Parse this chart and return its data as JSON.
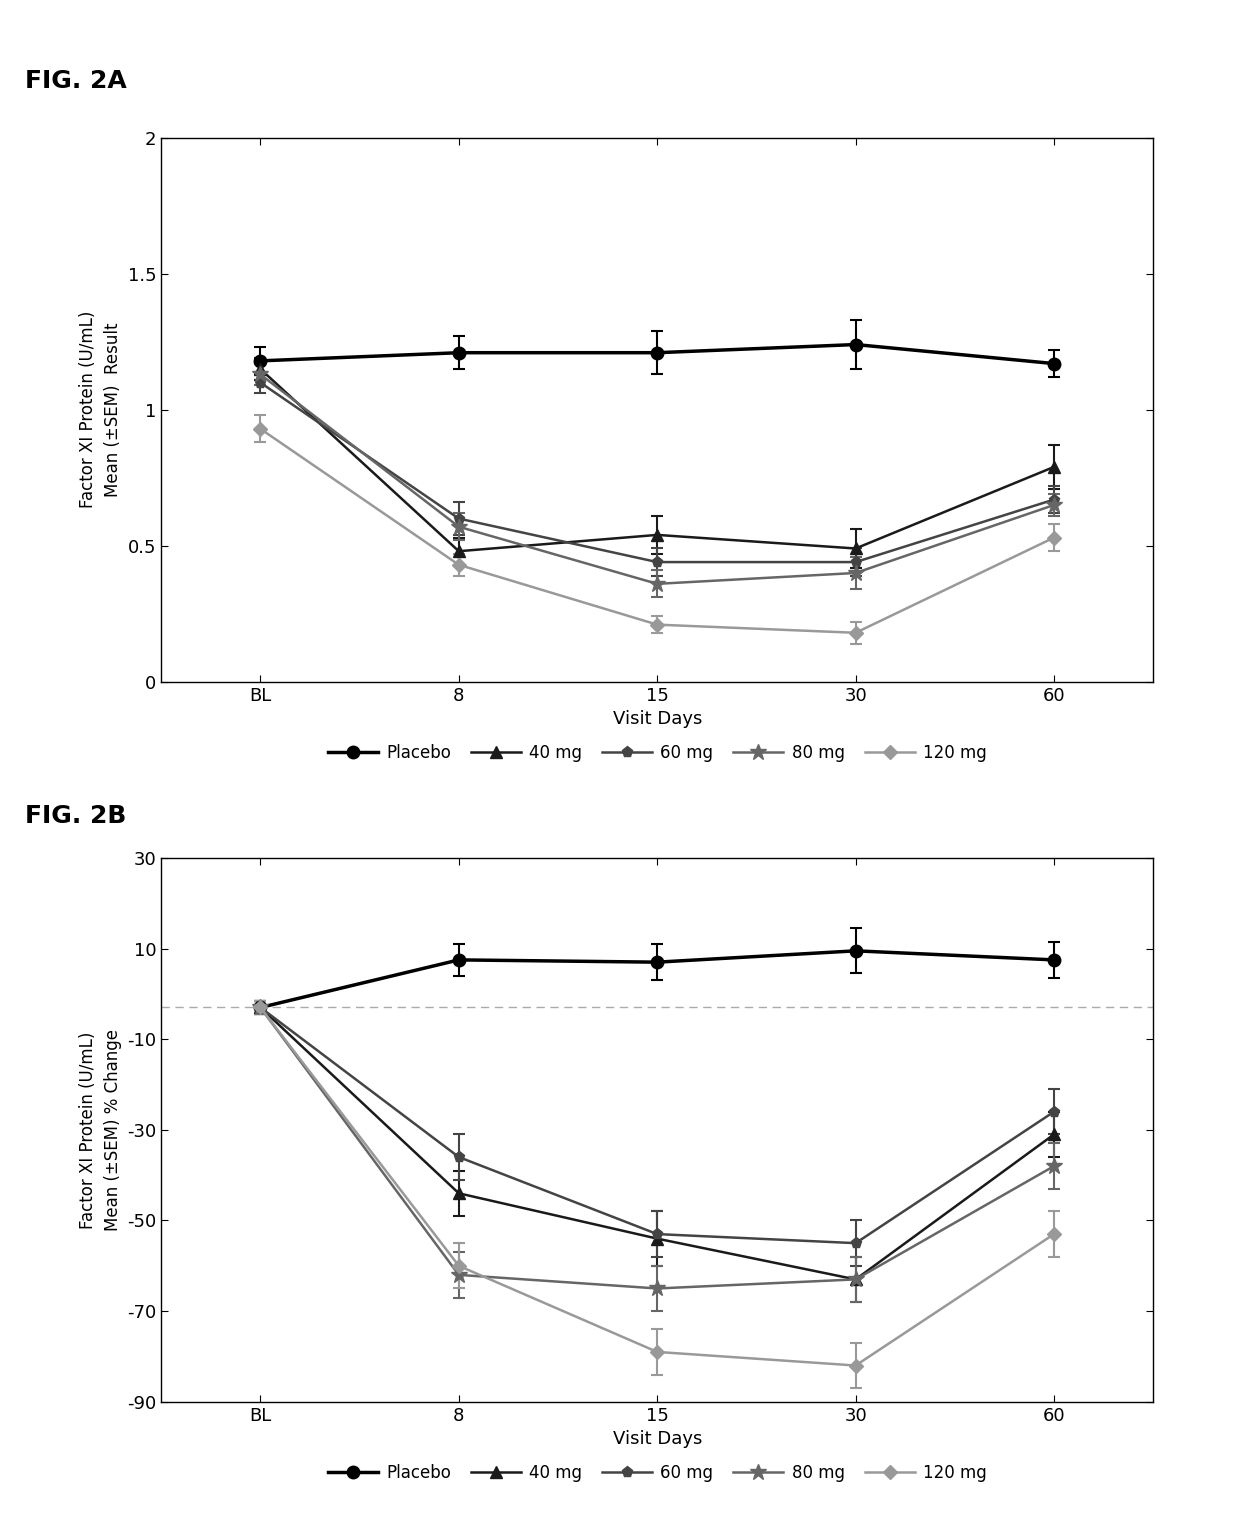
{
  "fig2a": {
    "title": "FIG. 2A",
    "xlabel": "Visit Days",
    "ylabel": "Factor XI Protein (U/mL)\nMean (±SEM)  Result",
    "xlim": [
      -0.5,
      4.5
    ],
    "ylim": [
      0.0,
      2.0
    ],
    "yticks": [
      0.0,
      0.5,
      1.0,
      1.5,
      2.0
    ],
    "xtick_labels": [
      "BL",
      "8",
      "15",
      "30",
      "60"
    ],
    "series": {
      "Placebo": {
        "y": [
          1.18,
          1.21,
          1.21,
          1.24,
          1.17
        ],
        "yerr": [
          0.05,
          0.06,
          0.08,
          0.09,
          0.05
        ],
        "color": "#000000",
        "marker": "o",
        "linestyle": "-",
        "linewidth": 2.5,
        "markersize": 9,
        "markerfacecolor": "#000000"
      },
      "40 mg": {
        "y": [
          1.15,
          0.48,
          0.54,
          0.49,
          0.79
        ],
        "yerr": [
          0.04,
          0.05,
          0.07,
          0.07,
          0.08
        ],
        "color": "#1a1a1a",
        "marker": "^",
        "linestyle": "-",
        "linewidth": 1.8,
        "markersize": 8,
        "markerfacecolor": "#1a1a1a"
      },
      "60 mg": {
        "y": [
          1.1,
          0.6,
          0.44,
          0.44,
          0.67
        ],
        "yerr": [
          0.04,
          0.06,
          0.05,
          0.05,
          0.05
        ],
        "color": "#444444",
        "marker": "p",
        "linestyle": "-",
        "linewidth": 1.8,
        "markersize": 8,
        "markerfacecolor": "#444444"
      },
      "80 mg": {
        "y": [
          1.13,
          0.57,
          0.36,
          0.4,
          0.65
        ],
        "yerr": [
          0.04,
          0.05,
          0.05,
          0.06,
          0.04
        ],
        "color": "#666666",
        "marker": "*",
        "linestyle": "-",
        "linewidth": 1.8,
        "markersize": 12,
        "markerfacecolor": "#666666"
      },
      "120 mg": {
        "y": [
          0.93,
          0.43,
          0.21,
          0.18,
          0.53
        ],
        "yerr": [
          0.05,
          0.04,
          0.03,
          0.04,
          0.05
        ],
        "color": "#999999",
        "marker": "D",
        "linestyle": "-",
        "linewidth": 1.8,
        "markersize": 7,
        "markerfacecolor": "#999999"
      }
    }
  },
  "fig2b": {
    "title": "FIG. 2B",
    "xlabel": "Visit Days",
    "ylabel": "Factor XI Protein (U/mL)\nMean (±SEM) % Change",
    "xlim": [
      -0.5,
      4.5
    ],
    "ylim": [
      -90,
      30
    ],
    "yticks": [
      -90,
      -70,
      -50,
      -30,
      -10,
      10,
      30
    ],
    "xtick_labels": [
      "BL",
      "8",
      "15",
      "30",
      "60"
    ],
    "dashed_y": -3,
    "series": {
      "Placebo": {
        "y": [
          -3,
          7.5,
          7.0,
          9.5,
          7.5
        ],
        "yerr": [
          1.5,
          3.5,
          4.0,
          5.0,
          4.0
        ],
        "color": "#000000",
        "marker": "o",
        "linestyle": "-",
        "linewidth": 2.5,
        "markersize": 9,
        "markerfacecolor": "#000000"
      },
      "40 mg": {
        "y": [
          -3,
          -44,
          -54,
          -63,
          -31
        ],
        "yerr": [
          1.5,
          5,
          6,
          5,
          5
        ],
        "color": "#1a1a1a",
        "marker": "^",
        "linestyle": "-",
        "linewidth": 1.8,
        "markersize": 8,
        "markerfacecolor": "#1a1a1a"
      },
      "60 mg": {
        "y": [
          -3,
          -36,
          -53,
          -55,
          -26
        ],
        "yerr": [
          1.5,
          5,
          5,
          5,
          5
        ],
        "color": "#444444",
        "marker": "p",
        "linestyle": "-",
        "linewidth": 1.8,
        "markersize": 8,
        "markerfacecolor": "#444444"
      },
      "80 mg": {
        "y": [
          -3,
          -62,
          -65,
          -63,
          -38
        ],
        "yerr": [
          1.5,
          5,
          5,
          5,
          5
        ],
        "color": "#666666",
        "marker": "*",
        "linestyle": "-",
        "linewidth": 1.8,
        "markersize": 12,
        "markerfacecolor": "#666666"
      },
      "120 mg": {
        "y": [
          -3,
          -60,
          -79,
          -82,
          -53
        ],
        "yerr": [
          1.5,
          5,
          5,
          5,
          5
        ],
        "color": "#999999",
        "marker": "D",
        "linestyle": "-",
        "linewidth": 1.8,
        "markersize": 7,
        "markerfacecolor": "#999999"
      }
    }
  },
  "legend_order": [
    "Placebo",
    "40 mg",
    "60 mg",
    "80 mg",
    "120 mg"
  ]
}
